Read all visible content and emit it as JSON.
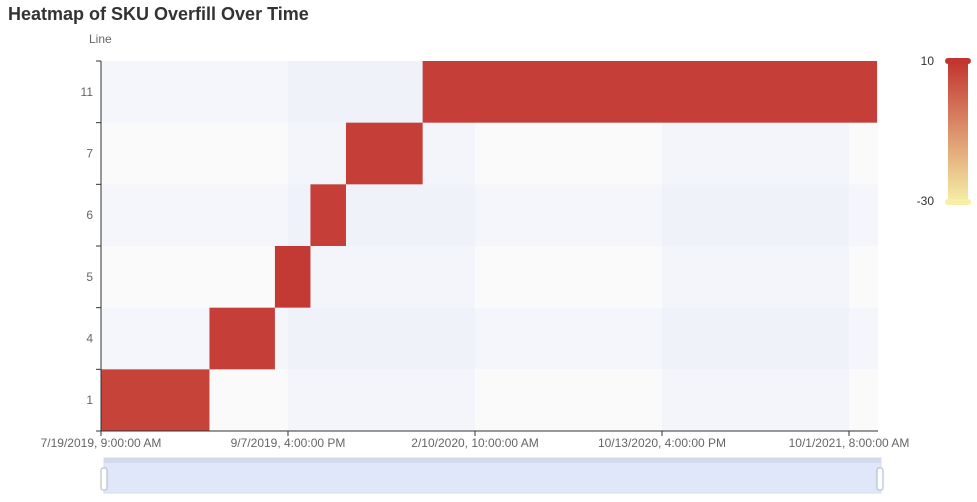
{
  "chart_data": {
    "type": "heatmap",
    "title": "Heatmap of SKU Overfill Over Time",
    "ylabel": "Line",
    "xlabel": "",
    "y_categories": [
      "1",
      "4",
      "5",
      "6",
      "7",
      "11"
    ],
    "x_tick_labels": [
      "7/19/2019, 9:00:00 AM",
      "9/7/2019, 4:00:00 PM",
      "2/10/2020, 10:00:00 AM",
      "10/13/2020, 4:00:00 PM",
      "10/1/2021, 8:00:00 AM"
    ],
    "segments": [
      {
        "line": "1",
        "from_tick": 0,
        "to_tick": 0.58,
        "value": 7
      },
      {
        "line": "4",
        "from_tick": 0.58,
        "to_tick": 0.93,
        "value": 8
      },
      {
        "line": "5",
        "from_tick": 0.93,
        "to_tick": 1.12,
        "value": 9
      },
      {
        "line": "6",
        "from_tick": 1.12,
        "to_tick": 1.31,
        "value": 8
      },
      {
        "line": "7",
        "from_tick": 1.31,
        "to_tick": 1.72,
        "value": 8
      },
      {
        "line": "11",
        "from_tick": 1.72,
        "to_tick": 4.15,
        "value": 8
      }
    ],
    "visual_map": {
      "max": 10,
      "min": -30,
      "max_label": "10",
      "min_label": "-30",
      "color_high": "#c23531",
      "color_low": "#f6efa6"
    },
    "grid": true,
    "data_zoom": true
  }
}
